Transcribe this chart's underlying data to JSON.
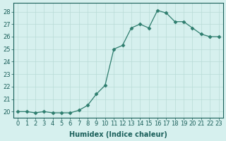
{
  "x": [
    0,
    1,
    2,
    3,
    4,
    5,
    6,
    7,
    8,
    9,
    10,
    11,
    12,
    13,
    14,
    15,
    16,
    17,
    18,
    19,
    20,
    21,
    22,
    23
  ],
  "y": [
    20.0,
    20.0,
    19.9,
    20.0,
    19.9,
    19.9,
    19.9,
    20.1,
    20.5,
    21.4,
    22.1,
    25.0,
    25.3,
    26.7,
    27.0,
    26.7,
    28.1,
    27.9,
    27.2,
    27.2,
    26.7,
    26.2,
    26.0,
    26.0
  ],
  "line_color": "#2e7d6e",
  "marker": "D",
  "marker_size": 2.5,
  "bg_color": "#d6f0ee",
  "grid_color": "#b8dbd7",
  "xlabel": "Humidex (Indice chaleur)",
  "ylim": [
    19.5,
    28.7
  ],
  "yticks": [
    20,
    21,
    22,
    23,
    24,
    25,
    26,
    27,
    28
  ],
  "xticks": [
    0,
    1,
    2,
    3,
    4,
    5,
    6,
    7,
    8,
    9,
    10,
    11,
    12,
    13,
    14,
    15,
    16,
    17,
    18,
    19,
    20,
    21,
    22,
    23
  ],
  "title_color": "#1a5f5a",
  "axis_color": "#1a5f5a",
  "label_fontsize": 7,
  "tick_fontsize": 6.0
}
